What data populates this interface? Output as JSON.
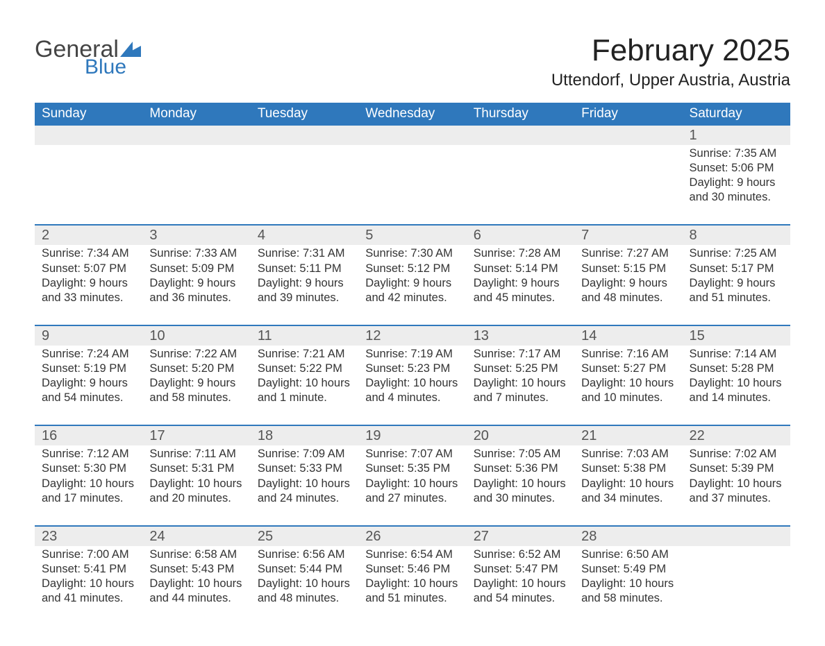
{
  "logo": {
    "text1": "General",
    "text2": "Blue",
    "flag_color": "#2f78bc"
  },
  "title": "February 2025",
  "location": "Uttendorf, Upper Austria, Austria",
  "colors": {
    "header_bg": "#2f78bc",
    "header_text": "#ffffff",
    "daynum_bg": "#ededed",
    "row_border": "#2f78bc",
    "page_bg": "#ffffff",
    "body_text": "#2b2b2b"
  },
  "fonts": {
    "title_size_pt": 33,
    "location_size_pt": 18,
    "header_size_pt": 14,
    "daynum_size_pt": 15,
    "body_size_pt": 12
  },
  "day_headers": [
    "Sunday",
    "Monday",
    "Tuesday",
    "Wednesday",
    "Thursday",
    "Friday",
    "Saturday"
  ],
  "start_weekday_index": 6,
  "days": [
    {
      "n": 1,
      "sunrise": "7:35 AM",
      "sunset": "5:06 PM",
      "daylight": "9 hours and 30 minutes."
    },
    {
      "n": 2,
      "sunrise": "7:34 AM",
      "sunset": "5:07 PM",
      "daylight": "9 hours and 33 minutes."
    },
    {
      "n": 3,
      "sunrise": "7:33 AM",
      "sunset": "5:09 PM",
      "daylight": "9 hours and 36 minutes."
    },
    {
      "n": 4,
      "sunrise": "7:31 AM",
      "sunset": "5:11 PM",
      "daylight": "9 hours and 39 minutes."
    },
    {
      "n": 5,
      "sunrise": "7:30 AM",
      "sunset": "5:12 PM",
      "daylight": "9 hours and 42 minutes."
    },
    {
      "n": 6,
      "sunrise": "7:28 AM",
      "sunset": "5:14 PM",
      "daylight": "9 hours and 45 minutes."
    },
    {
      "n": 7,
      "sunrise": "7:27 AM",
      "sunset": "5:15 PM",
      "daylight": "9 hours and 48 minutes."
    },
    {
      "n": 8,
      "sunrise": "7:25 AM",
      "sunset": "5:17 PM",
      "daylight": "9 hours and 51 minutes."
    },
    {
      "n": 9,
      "sunrise": "7:24 AM",
      "sunset": "5:19 PM",
      "daylight": "9 hours and 54 minutes."
    },
    {
      "n": 10,
      "sunrise": "7:22 AM",
      "sunset": "5:20 PM",
      "daylight": "9 hours and 58 minutes."
    },
    {
      "n": 11,
      "sunrise": "7:21 AM",
      "sunset": "5:22 PM",
      "daylight": "10 hours and 1 minute."
    },
    {
      "n": 12,
      "sunrise": "7:19 AM",
      "sunset": "5:23 PM",
      "daylight": "10 hours and 4 minutes."
    },
    {
      "n": 13,
      "sunrise": "7:17 AM",
      "sunset": "5:25 PM",
      "daylight": "10 hours and 7 minutes."
    },
    {
      "n": 14,
      "sunrise": "7:16 AM",
      "sunset": "5:27 PM",
      "daylight": "10 hours and 10 minutes."
    },
    {
      "n": 15,
      "sunrise": "7:14 AM",
      "sunset": "5:28 PM",
      "daylight": "10 hours and 14 minutes."
    },
    {
      "n": 16,
      "sunrise": "7:12 AM",
      "sunset": "5:30 PM",
      "daylight": "10 hours and 17 minutes."
    },
    {
      "n": 17,
      "sunrise": "7:11 AM",
      "sunset": "5:31 PM",
      "daylight": "10 hours and 20 minutes."
    },
    {
      "n": 18,
      "sunrise": "7:09 AM",
      "sunset": "5:33 PM",
      "daylight": "10 hours and 24 minutes."
    },
    {
      "n": 19,
      "sunrise": "7:07 AM",
      "sunset": "5:35 PM",
      "daylight": "10 hours and 27 minutes."
    },
    {
      "n": 20,
      "sunrise": "7:05 AM",
      "sunset": "5:36 PM",
      "daylight": "10 hours and 30 minutes."
    },
    {
      "n": 21,
      "sunrise": "7:03 AM",
      "sunset": "5:38 PM",
      "daylight": "10 hours and 34 minutes."
    },
    {
      "n": 22,
      "sunrise": "7:02 AM",
      "sunset": "5:39 PM",
      "daylight": "10 hours and 37 minutes."
    },
    {
      "n": 23,
      "sunrise": "7:00 AM",
      "sunset": "5:41 PM",
      "daylight": "10 hours and 41 minutes."
    },
    {
      "n": 24,
      "sunrise": "6:58 AM",
      "sunset": "5:43 PM",
      "daylight": "10 hours and 44 minutes."
    },
    {
      "n": 25,
      "sunrise": "6:56 AM",
      "sunset": "5:44 PM",
      "daylight": "10 hours and 48 minutes."
    },
    {
      "n": 26,
      "sunrise": "6:54 AM",
      "sunset": "5:46 PM",
      "daylight": "10 hours and 51 minutes."
    },
    {
      "n": 27,
      "sunrise": "6:52 AM",
      "sunset": "5:47 PM",
      "daylight": "10 hours and 54 minutes."
    },
    {
      "n": 28,
      "sunrise": "6:50 AM",
      "sunset": "5:49 PM",
      "daylight": "10 hours and 58 minutes."
    }
  ],
  "labels": {
    "sunrise": "Sunrise:",
    "sunset": "Sunset:",
    "daylight": "Daylight:"
  }
}
